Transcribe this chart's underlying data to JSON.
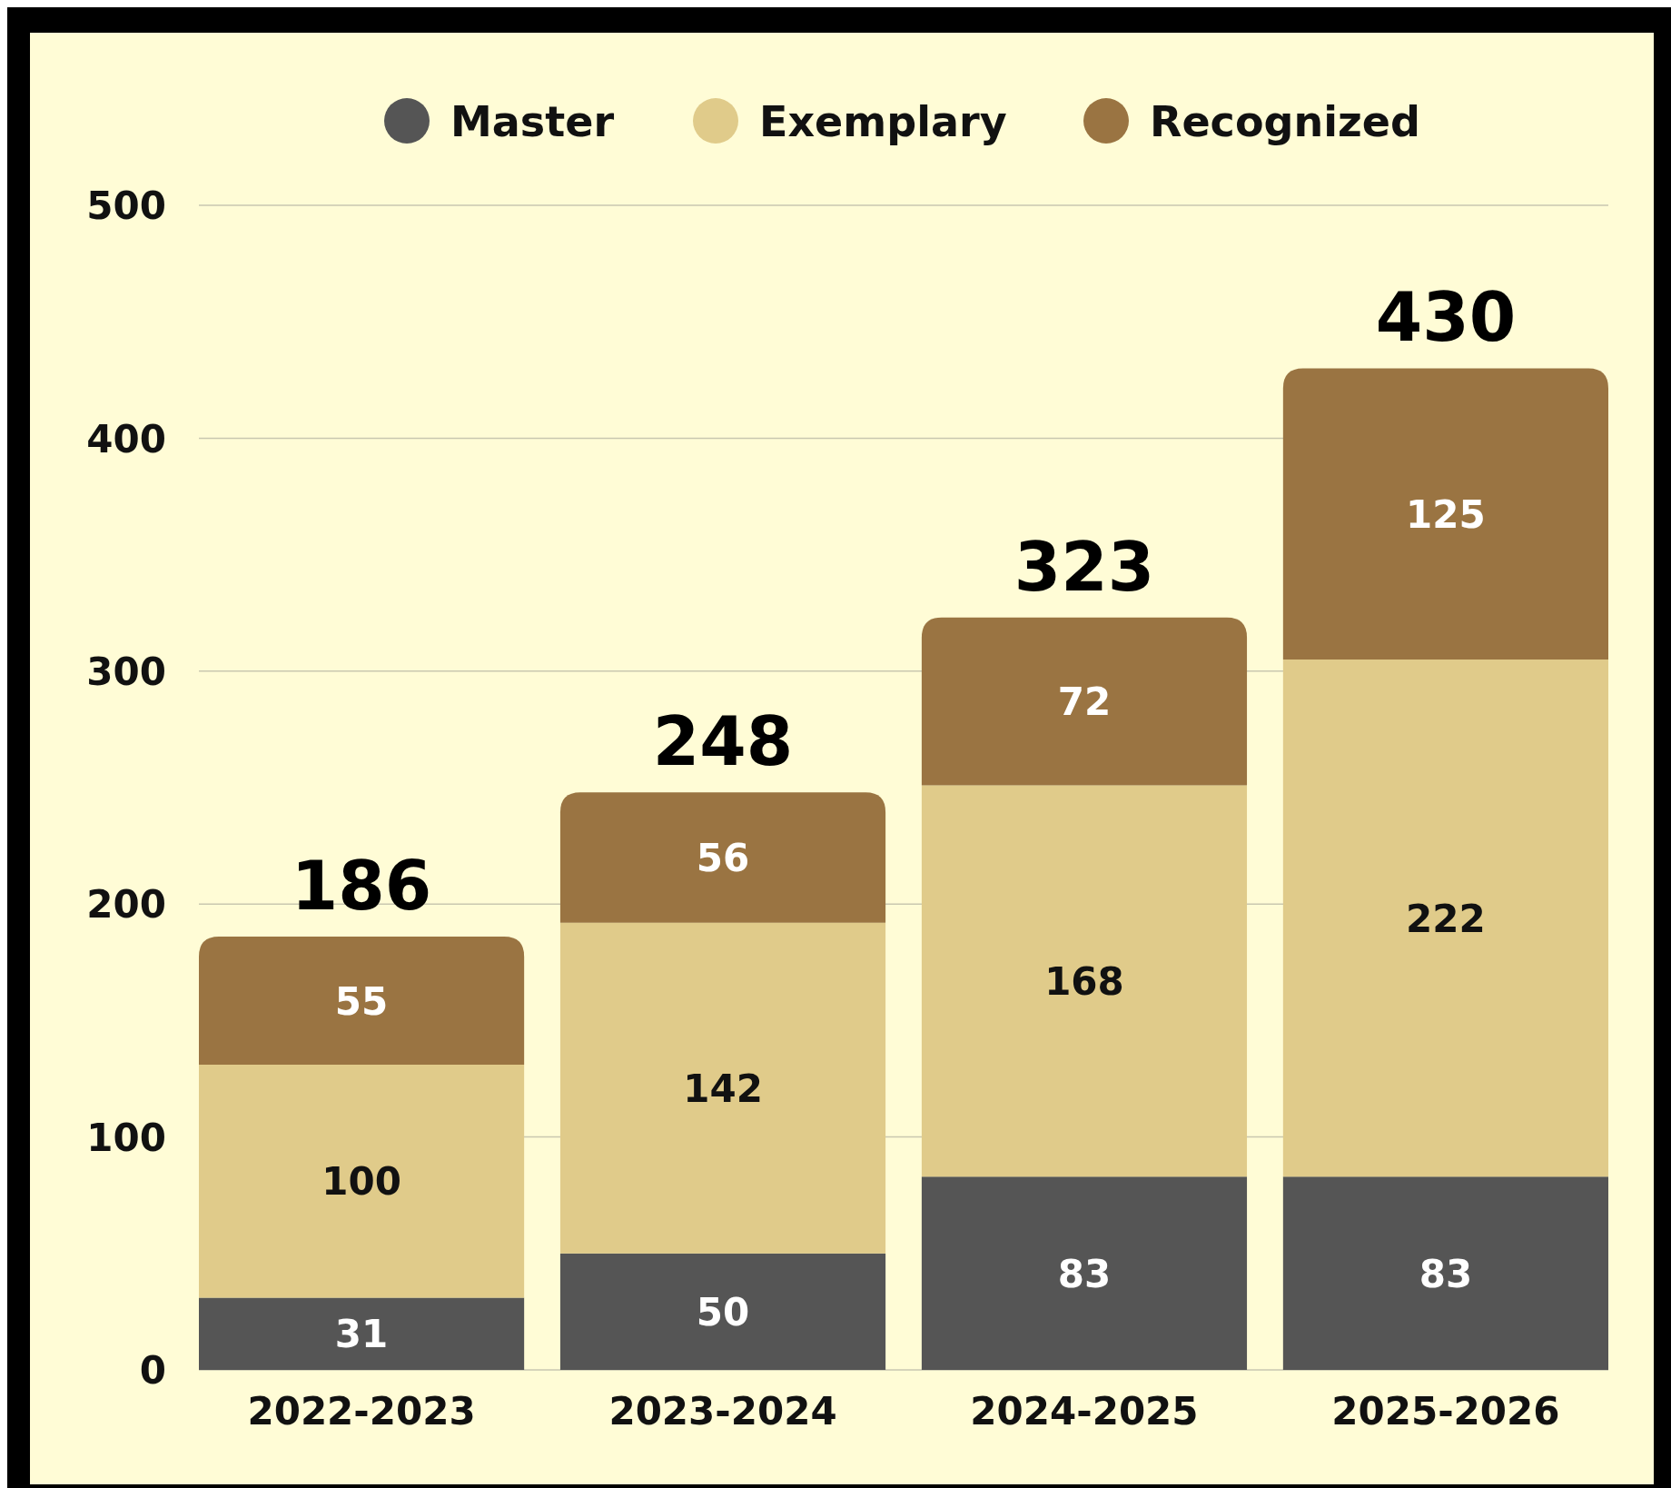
{
  "chart_data": {
    "type": "bar",
    "stacked": true,
    "categories": [
      "2022-2023",
      "2023-2024",
      "2024-2025",
      "2025-2026"
    ],
    "series": [
      {
        "name": "Master",
        "color": "#555555",
        "values": [
          31,
          50,
          83,
          83
        ]
      },
      {
        "name": "Exemplary",
        "color": "#e0cb8a",
        "values": [
          100,
          142,
          168,
          222
        ]
      },
      {
        "name": "Recognized",
        "color": "#9a7442",
        "values": [
          55,
          56,
          72,
          125
        ]
      }
    ],
    "ylim": [
      0,
      500
    ],
    "yticks": [
      0,
      100,
      200,
      300,
      400,
      500
    ],
    "grid": "y",
    "legend": "top",
    "data_labels": true,
    "totals": [
      "186",
      "248",
      "323",
      "430"
    ]
  }
}
